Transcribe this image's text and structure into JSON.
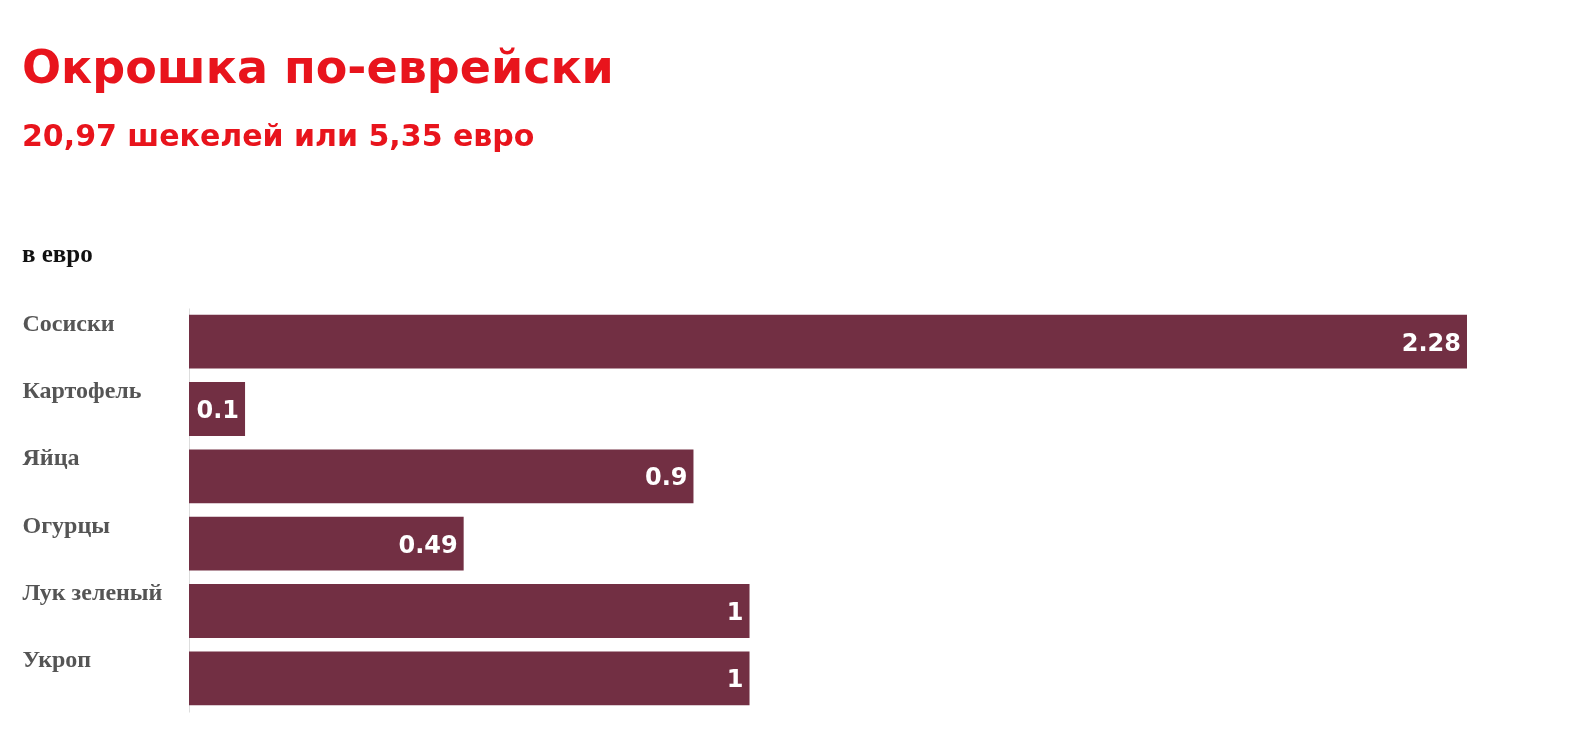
{
  "chart_data": {
    "type": "bar",
    "orientation": "horizontal",
    "title": "Окрошка по-еврейски",
    "subtitle": "20,97 шекелей или 5,35 евро",
    "annotations": [
      "в евро"
    ],
    "categories": [
      "Сосиски",
      "Картофель",
      "Яйца",
      "Огурцы",
      "Лук зеленый",
      "Укроп"
    ],
    "values": [
      2.28,
      0.1,
      0.9,
      0.49,
      1,
      1
    ],
    "color": "#722f43",
    "data_labels": true,
    "grid": false
  }
}
